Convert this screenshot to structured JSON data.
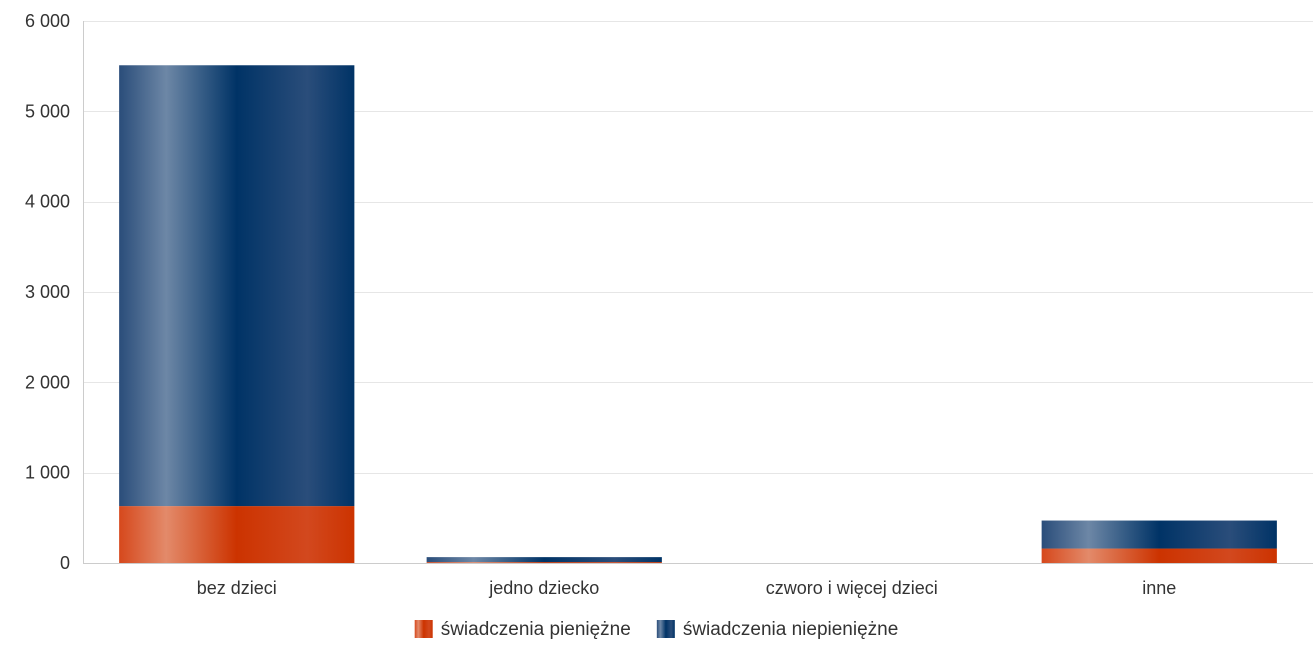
{
  "chart_data": {
    "type": "bar",
    "stacked": true,
    "categories": [
      "bez dzieci",
      "jedno dziecko",
      "czworo i więcej dzieci",
      "inne"
    ],
    "series": [
      {
        "name": "świadczenia pieniężne",
        "values": [
          630,
          10,
          0,
          160
        ],
        "color": "#cc3300"
      },
      {
        "name": "świadczenia niepieniężne",
        "values": [
          4880,
          55,
          0,
          310
        ],
        "color": "#003366"
      }
    ],
    "ylim": [
      0,
      6000
    ],
    "yticks": [
      0,
      1000,
      2000,
      3000,
      4000,
      5000,
      6000
    ],
    "ytick_labels": [
      "0",
      "1 000",
      "2 000",
      "3 000",
      "4 000",
      "5 000",
      "6 000"
    ],
    "grid": true,
    "legend": "bottom-center"
  }
}
